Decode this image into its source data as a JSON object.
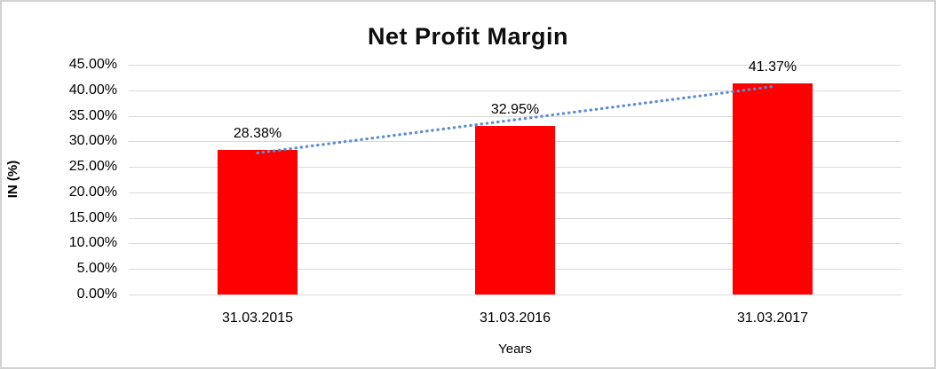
{
  "chart_data": {
    "type": "bar",
    "title": "Net Profit Margin",
    "categories": [
      "31.03.2015",
      "31.03.2016",
      "31.03.2017"
    ],
    "values": [
      28.38,
      32.95,
      41.37
    ],
    "data_labels": [
      "28.38%",
      "32.95%",
      "41.37%"
    ],
    "xlabel": "Years",
    "ylabel": "IN (%)",
    "ylim": [
      0,
      45
    ],
    "ytick_step": 5,
    "ytick_labels": [
      "0.00%",
      "5.00%",
      "10.00%",
      "15.00%",
      "20.00%",
      "25.00%",
      "30.00%",
      "35.00%",
      "40.00%",
      "45.00%"
    ],
    "grid": true,
    "legend": "none",
    "bar_color": "#ff0000",
    "trendline": {
      "type": "linear",
      "style": "dotted",
      "color": "#5b8fd0"
    }
  }
}
